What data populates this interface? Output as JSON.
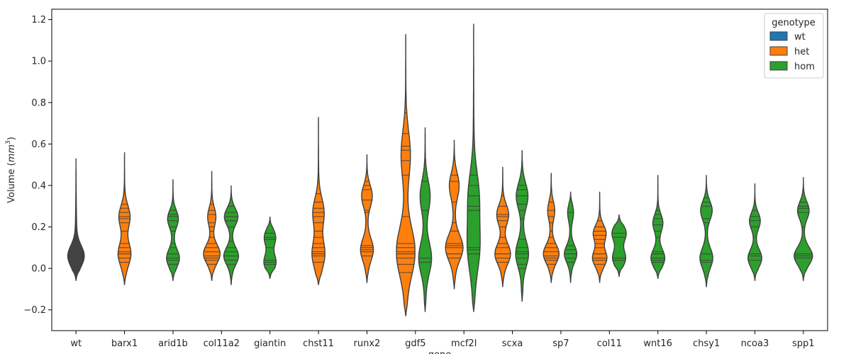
{
  "chart_data": {
    "type": "violin",
    "ylabel": "Volume (mm³)",
    "ylabel_parts": {
      "base": "Volume (",
      "unit": "mm",
      "exp": "3",
      "close": ")"
    },
    "xlabel": "gene",
    "ylim": [
      -0.3,
      1.25
    ],
    "yticks": [
      -0.2,
      0.0,
      0.2,
      0.4,
      0.6,
      0.8,
      1.0,
      1.2
    ],
    "ytick_labels": [
      "−0.2",
      "0.0",
      "0.2",
      "0.4",
      "0.6",
      "0.8",
      "1.0",
      "1.2"
    ],
    "grid": false,
    "legend": {
      "title": "genotype",
      "position": "top-right",
      "entries": [
        {
          "name": "wt",
          "color": "#1f77b4"
        },
        {
          "name": "het",
          "color": "#ff7f0e"
        },
        {
          "name": "hom",
          "color": "#2ca02c"
        }
      ]
    },
    "categories": [
      "wt",
      "barx1",
      "arid1b",
      "col11a2",
      "giantin",
      "chst11",
      "runx2",
      "gdf5",
      "mcf2l",
      "scxa",
      "sp7",
      "col11",
      "wnt16",
      "chsy1",
      "ncoa3",
      "spp1"
    ],
    "violins": [
      {
        "category": "wt",
        "genotype": "wt",
        "slot": "center",
        "color": "#434343",
        "min": -0.06,
        "max": 0.53,
        "modes": [
          [
            0.06,
            0.8
          ]
        ],
        "tail": 0.1,
        "obs": [
          0.03,
          0.05,
          0.06,
          0.07,
          0.08,
          0.1,
          0.2,
          0.3
        ]
      },
      {
        "category": "barx1",
        "genotype": "het",
        "slot": "center",
        "color": "#ff7f0e",
        "min": -0.08,
        "max": 0.56,
        "modes": [
          [
            0.07,
            0.6
          ],
          [
            0.25,
            0.55
          ]
        ],
        "tail": 0.1,
        "obs": [
          0.03,
          0.05,
          0.07,
          0.08,
          0.1,
          0.12,
          0.18,
          0.22,
          0.24,
          0.25,
          0.27,
          0.29,
          0.31,
          0.36,
          0.38
        ]
      },
      {
        "category": "arid1b",
        "genotype": "hom",
        "slot": "center",
        "color": "#2ca02c",
        "min": -0.06,
        "max": 0.43,
        "modes": [
          [
            0.05,
            0.6
          ],
          [
            0.24,
            0.55
          ]
        ],
        "tail": 0.1,
        "obs": [
          0.02,
          0.04,
          0.05,
          0.07,
          0.1,
          0.12,
          0.18,
          0.2,
          0.23,
          0.25,
          0.26,
          0.28
        ]
      },
      {
        "category": "col11a2",
        "genotype": "het",
        "slot": "left",
        "color": "#ff7f0e",
        "min": -0.06,
        "max": 0.47,
        "modes": [
          [
            0.07,
            0.8
          ],
          [
            0.25,
            0.4
          ]
        ],
        "tail": 0.1,
        "obs": [
          0.02,
          0.04,
          0.05,
          0.06,
          0.08,
          0.1,
          0.12,
          0.15,
          0.18,
          0.2,
          0.22,
          0.26,
          0.28,
          0.31,
          0.38
        ]
      },
      {
        "category": "col11a2",
        "genotype": "hom",
        "slot": "right",
        "color": "#2ca02c",
        "min": -0.08,
        "max": 0.4,
        "modes": [
          [
            0.06,
            0.7
          ],
          [
            0.25,
            0.7
          ]
        ],
        "tail": 0.1,
        "obs": [
          0.02,
          0.04,
          0.06,
          0.08,
          0.1,
          0.13,
          0.2,
          0.23,
          0.25,
          0.27,
          0.3
        ]
      },
      {
        "category": "giantin",
        "genotype": "hom",
        "slot": "center",
        "color": "#2ca02c",
        "min": -0.05,
        "max": 0.25,
        "modes": [
          [
            0.03,
            0.6
          ],
          [
            0.15,
            0.6
          ]
        ],
        "tail": 0.06,
        "obs": [
          0.02,
          0.03,
          0.04,
          0.1,
          0.14,
          0.15,
          0.17
        ]
      },
      {
        "category": "chst11",
        "genotype": "het",
        "slot": "center",
        "color": "#ff7f0e",
        "min": -0.08,
        "max": 0.73,
        "modes": [
          [
            0.07,
            0.6
          ],
          [
            0.27,
            0.55
          ]
        ],
        "tail": 0.1,
        "obs": [
          0.03,
          0.06,
          0.07,
          0.08,
          0.1,
          0.12,
          0.15,
          0.18,
          0.22,
          0.25,
          0.27,
          0.29,
          0.32,
          0.36
        ]
      },
      {
        "category": "runx2",
        "genotype": "het",
        "slot": "center",
        "color": "#ff7f0e",
        "min": -0.07,
        "max": 0.55,
        "modes": [
          [
            0.09,
            0.6
          ],
          [
            0.35,
            0.55
          ]
        ],
        "tail": 0.1,
        "obs": [
          0.06,
          0.08,
          0.09,
          0.1,
          0.11,
          0.27,
          0.28,
          0.33,
          0.38,
          0.4,
          0.42
        ]
      },
      {
        "category": "gdf5",
        "genotype": "het",
        "slot": "left",
        "color": "#ff7f0e",
        "min": -0.23,
        "max": 1.13,
        "modes": [
          [
            0.08,
            0.9
          ],
          [
            0.55,
            0.45
          ]
        ],
        "tail": 0.12,
        "obs": [
          -0.02,
          0.02,
          0.05,
          0.07,
          0.08,
          0.1,
          0.12,
          0.25,
          0.45,
          0.52,
          0.57,
          0.59,
          0.65,
          0.75,
          0.88
        ]
      },
      {
        "category": "gdf5",
        "genotype": "hom",
        "slot": "right",
        "color": "#2ca02c",
        "min": -0.21,
        "max": 0.68,
        "modes": [
          [
            0.05,
            0.6
          ],
          [
            0.35,
            0.5
          ]
        ],
        "tail": 0.1,
        "obs": [
          0.03,
          0.05,
          0.28,
          0.42,
          0.55
        ]
      },
      {
        "category": "mcf2l",
        "genotype": "het",
        "slot": "left",
        "color": "#ff7f0e",
        "min": -0.1,
        "max": 0.62,
        "modes": [
          [
            0.1,
            0.85
          ],
          [
            0.4,
            0.5
          ]
        ],
        "tail": 0.1,
        "obs": [
          0.05,
          0.07,
          0.1,
          0.11,
          0.12,
          0.18,
          0.22,
          0.32,
          0.42,
          0.45,
          0.52
        ]
      },
      {
        "category": "mcf2l",
        "genotype": "hom",
        "slot": "right",
        "color": "#2ca02c",
        "min": -0.21,
        "max": 1.18,
        "modes": [
          [
            0.1,
            0.55
          ],
          [
            0.35,
            0.5
          ]
        ],
        "tail": 0.1,
        "obs": [
          0.07,
          0.09,
          0.1,
          0.28,
          0.3,
          0.35,
          0.4,
          0.45
        ]
      },
      {
        "category": "scxa",
        "genotype": "het",
        "slot": "left",
        "color": "#ff7f0e",
        "min": -0.09,
        "max": 0.49,
        "modes": [
          [
            0.07,
            0.75
          ],
          [
            0.26,
            0.6
          ]
        ],
        "tail": 0.1,
        "obs": [
          0.03,
          0.05,
          0.07,
          0.1,
          0.12,
          0.15,
          0.2,
          0.23,
          0.25,
          0.26,
          0.3,
          0.35
        ]
      },
      {
        "category": "scxa",
        "genotype": "hom",
        "slot": "right",
        "color": "#2ca02c",
        "min": -0.16,
        "max": 0.57,
        "modes": [
          [
            0.07,
            0.6
          ],
          [
            0.35,
            0.6
          ]
        ],
        "tail": 0.1,
        "obs": [
          0.0,
          0.02,
          0.05,
          0.07,
          0.08,
          0.1,
          0.14,
          0.24,
          0.28,
          0.31,
          0.35,
          0.38,
          0.4
        ]
      },
      {
        "category": "sp7",
        "genotype": "het",
        "slot": "left",
        "color": "#ff7f0e",
        "min": -0.07,
        "max": 0.46,
        "modes": [
          [
            0.07,
            0.75
          ],
          [
            0.28,
            0.35
          ]
        ],
        "tail": 0.1,
        "obs": [
          0.02,
          0.04,
          0.05,
          0.06,
          0.08,
          0.1,
          0.12,
          0.15,
          0.18,
          0.22,
          0.25,
          0.28,
          0.32
        ]
      },
      {
        "category": "sp7",
        "genotype": "hom",
        "slot": "right",
        "color": "#2ca02c",
        "min": -0.07,
        "max": 0.37,
        "modes": [
          [
            0.07,
            0.6
          ],
          [
            0.27,
            0.3
          ]
        ],
        "tail": 0.08,
        "obs": [
          0.03,
          0.05,
          0.07,
          0.09,
          0.11,
          0.27
        ]
      },
      {
        "category": "col11",
        "genotype": "het",
        "slot": "left",
        "color": "#ff7f0e",
        "min": -0.07,
        "max": 0.37,
        "modes": [
          [
            0.05,
            0.7
          ],
          [
            0.17,
            0.65
          ]
        ],
        "tail": 0.08,
        "obs": [
          0.02,
          0.04,
          0.05,
          0.07,
          0.1,
          0.12,
          0.14,
          0.16,
          0.18,
          0.2,
          0.23
        ]
      },
      {
        "category": "col11",
        "genotype": "hom",
        "slot": "right",
        "color": "#2ca02c",
        "min": -0.04,
        "max": 0.26,
        "modes": [
          [
            0.05,
            0.65
          ],
          [
            0.17,
            0.75
          ]
        ],
        "tail": 0.06,
        "obs": [
          0.04,
          0.05,
          0.15,
          0.17
        ]
      },
      {
        "category": "wnt16",
        "genotype": "hom",
        "slot": "center",
        "color": "#2ca02c",
        "min": -0.05,
        "max": 0.45,
        "modes": [
          [
            0.05,
            0.65
          ],
          [
            0.22,
            0.5
          ]
        ],
        "tail": 0.1,
        "obs": [
          0.03,
          0.04,
          0.05,
          0.07,
          0.08,
          0.15,
          0.18,
          0.21,
          0.24,
          0.26,
          0.28
        ]
      },
      {
        "category": "chsy1",
        "genotype": "hom",
        "slot": "center",
        "color": "#2ca02c",
        "min": -0.09,
        "max": 0.45,
        "modes": [
          [
            0.05,
            0.6
          ],
          [
            0.28,
            0.6
          ]
        ],
        "tail": 0.1,
        "obs": [
          0.03,
          0.04,
          0.07,
          0.22,
          0.24,
          0.3,
          0.32,
          0.34
        ]
      },
      {
        "category": "ncoa3",
        "genotype": "hom",
        "slot": "center",
        "color": "#2ca02c",
        "min": -0.06,
        "max": 0.41,
        "modes": [
          [
            0.05,
            0.65
          ],
          [
            0.23,
            0.55
          ]
        ],
        "tail": 0.1,
        "obs": [
          0.04,
          0.06,
          0.07,
          0.15,
          0.2,
          0.23,
          0.25,
          0.28
        ]
      },
      {
        "category": "spp1",
        "genotype": "hom",
        "slot": "center",
        "color": "#2ca02c",
        "min": -0.06,
        "max": 0.44,
        "modes": [
          [
            0.06,
            0.9
          ],
          [
            0.28,
            0.6
          ]
        ],
        "tail": 0.1,
        "obs": [
          0.05,
          0.06,
          0.07,
          0.2,
          0.27,
          0.29,
          0.3,
          0.32
        ]
      }
    ]
  }
}
